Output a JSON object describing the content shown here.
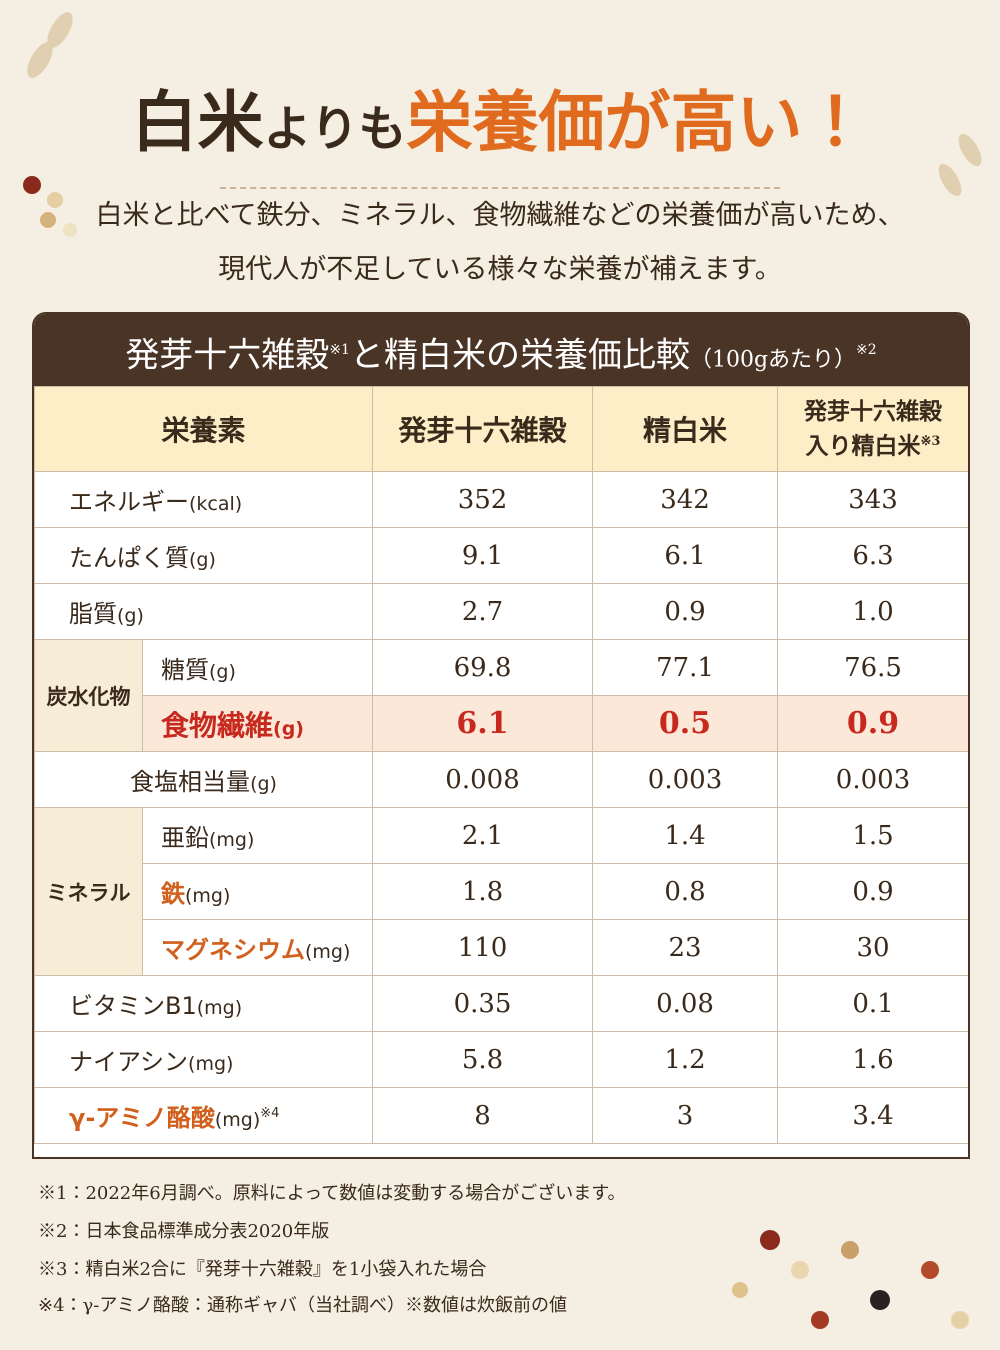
{
  "header": {
    "title_parts": [
      "白米",
      "よりも",
      "栄養価が高い！"
    ],
    "lead": [
      "白米と比べて鉄分、ミネラル、食物繊維などの栄養価が高いため、",
      "現代人が不足している様々な栄養が補えます。"
    ]
  },
  "table": {
    "caption": {
      "main": "発芽十六雑穀",
      "note1": "※1",
      "rest": "と精白米の栄養価比較",
      "per": "（100gあたり）",
      "note2": "※2"
    },
    "columns": [
      "栄養素",
      "発芽十六雑穀",
      "精白米",
      {
        "line1": "発芽十六雑穀",
        "line2": "入り精白米",
        "note": "※3"
      }
    ],
    "groups": [
      "炭水化物",
      "ミネラル"
    ],
    "rows": [
      {
        "label": "エネルギー",
        "unit": "(kcal)",
        "values": [
          "352",
          "342",
          "343"
        ]
      },
      {
        "label": "たんぱく質",
        "unit": "(g)",
        "values": [
          "9.1",
          "6.1",
          "6.3"
        ]
      },
      {
        "label": "脂質",
        "unit": "(g)",
        "values": [
          "2.7",
          "0.9",
          "1.0"
        ]
      },
      {
        "label": "糖質",
        "unit": "(g)",
        "values": [
          "69.8",
          "77.1",
          "76.5"
        ]
      },
      {
        "label": "食物繊維",
        "unit": "(g)",
        "values": [
          "6.1",
          "0.5",
          "0.9"
        ]
      },
      {
        "label": "食塩相当量",
        "unit": "(g)",
        "values": [
          "0.008",
          "0.003",
          "0.003"
        ]
      },
      {
        "label": "亜鉛",
        "unit": "(mg)",
        "values": [
          "2.1",
          "1.4",
          "1.5"
        ]
      },
      {
        "label": "鉄",
        "unit": "(mg)",
        "values": [
          "1.8",
          "0.8",
          "0.9"
        ]
      },
      {
        "label": "マグネシウム",
        "unit": "(mg)",
        "values": [
          "110",
          "23",
          "30"
        ]
      },
      {
        "label": "ビタミンB1",
        "unit": "(mg)",
        "values": [
          "0.35",
          "0.08",
          "0.1"
        ]
      },
      {
        "label": "ナイアシン",
        "unit": "(mg)",
        "values": [
          "5.8",
          "1.2",
          "1.6"
        ]
      },
      {
        "label": "γ-アミノ酪酸",
        "unit": "(mg)",
        "note": "※4",
        "values": [
          "8",
          "3",
          "3.4"
        ]
      }
    ]
  },
  "footnotes": [
    "※1：2022年6月調べ。原料によって数値は変動する場合がございます。",
    "※2：日本食品標準成分表2020年版",
    "※3：精白米2合に『発芽十六雑穀』を1小袋入れた場合",
    "※4：γ-アミノ酪酸：通称ギャバ（当社調べ）※数値は炊飯前の値"
  ]
}
